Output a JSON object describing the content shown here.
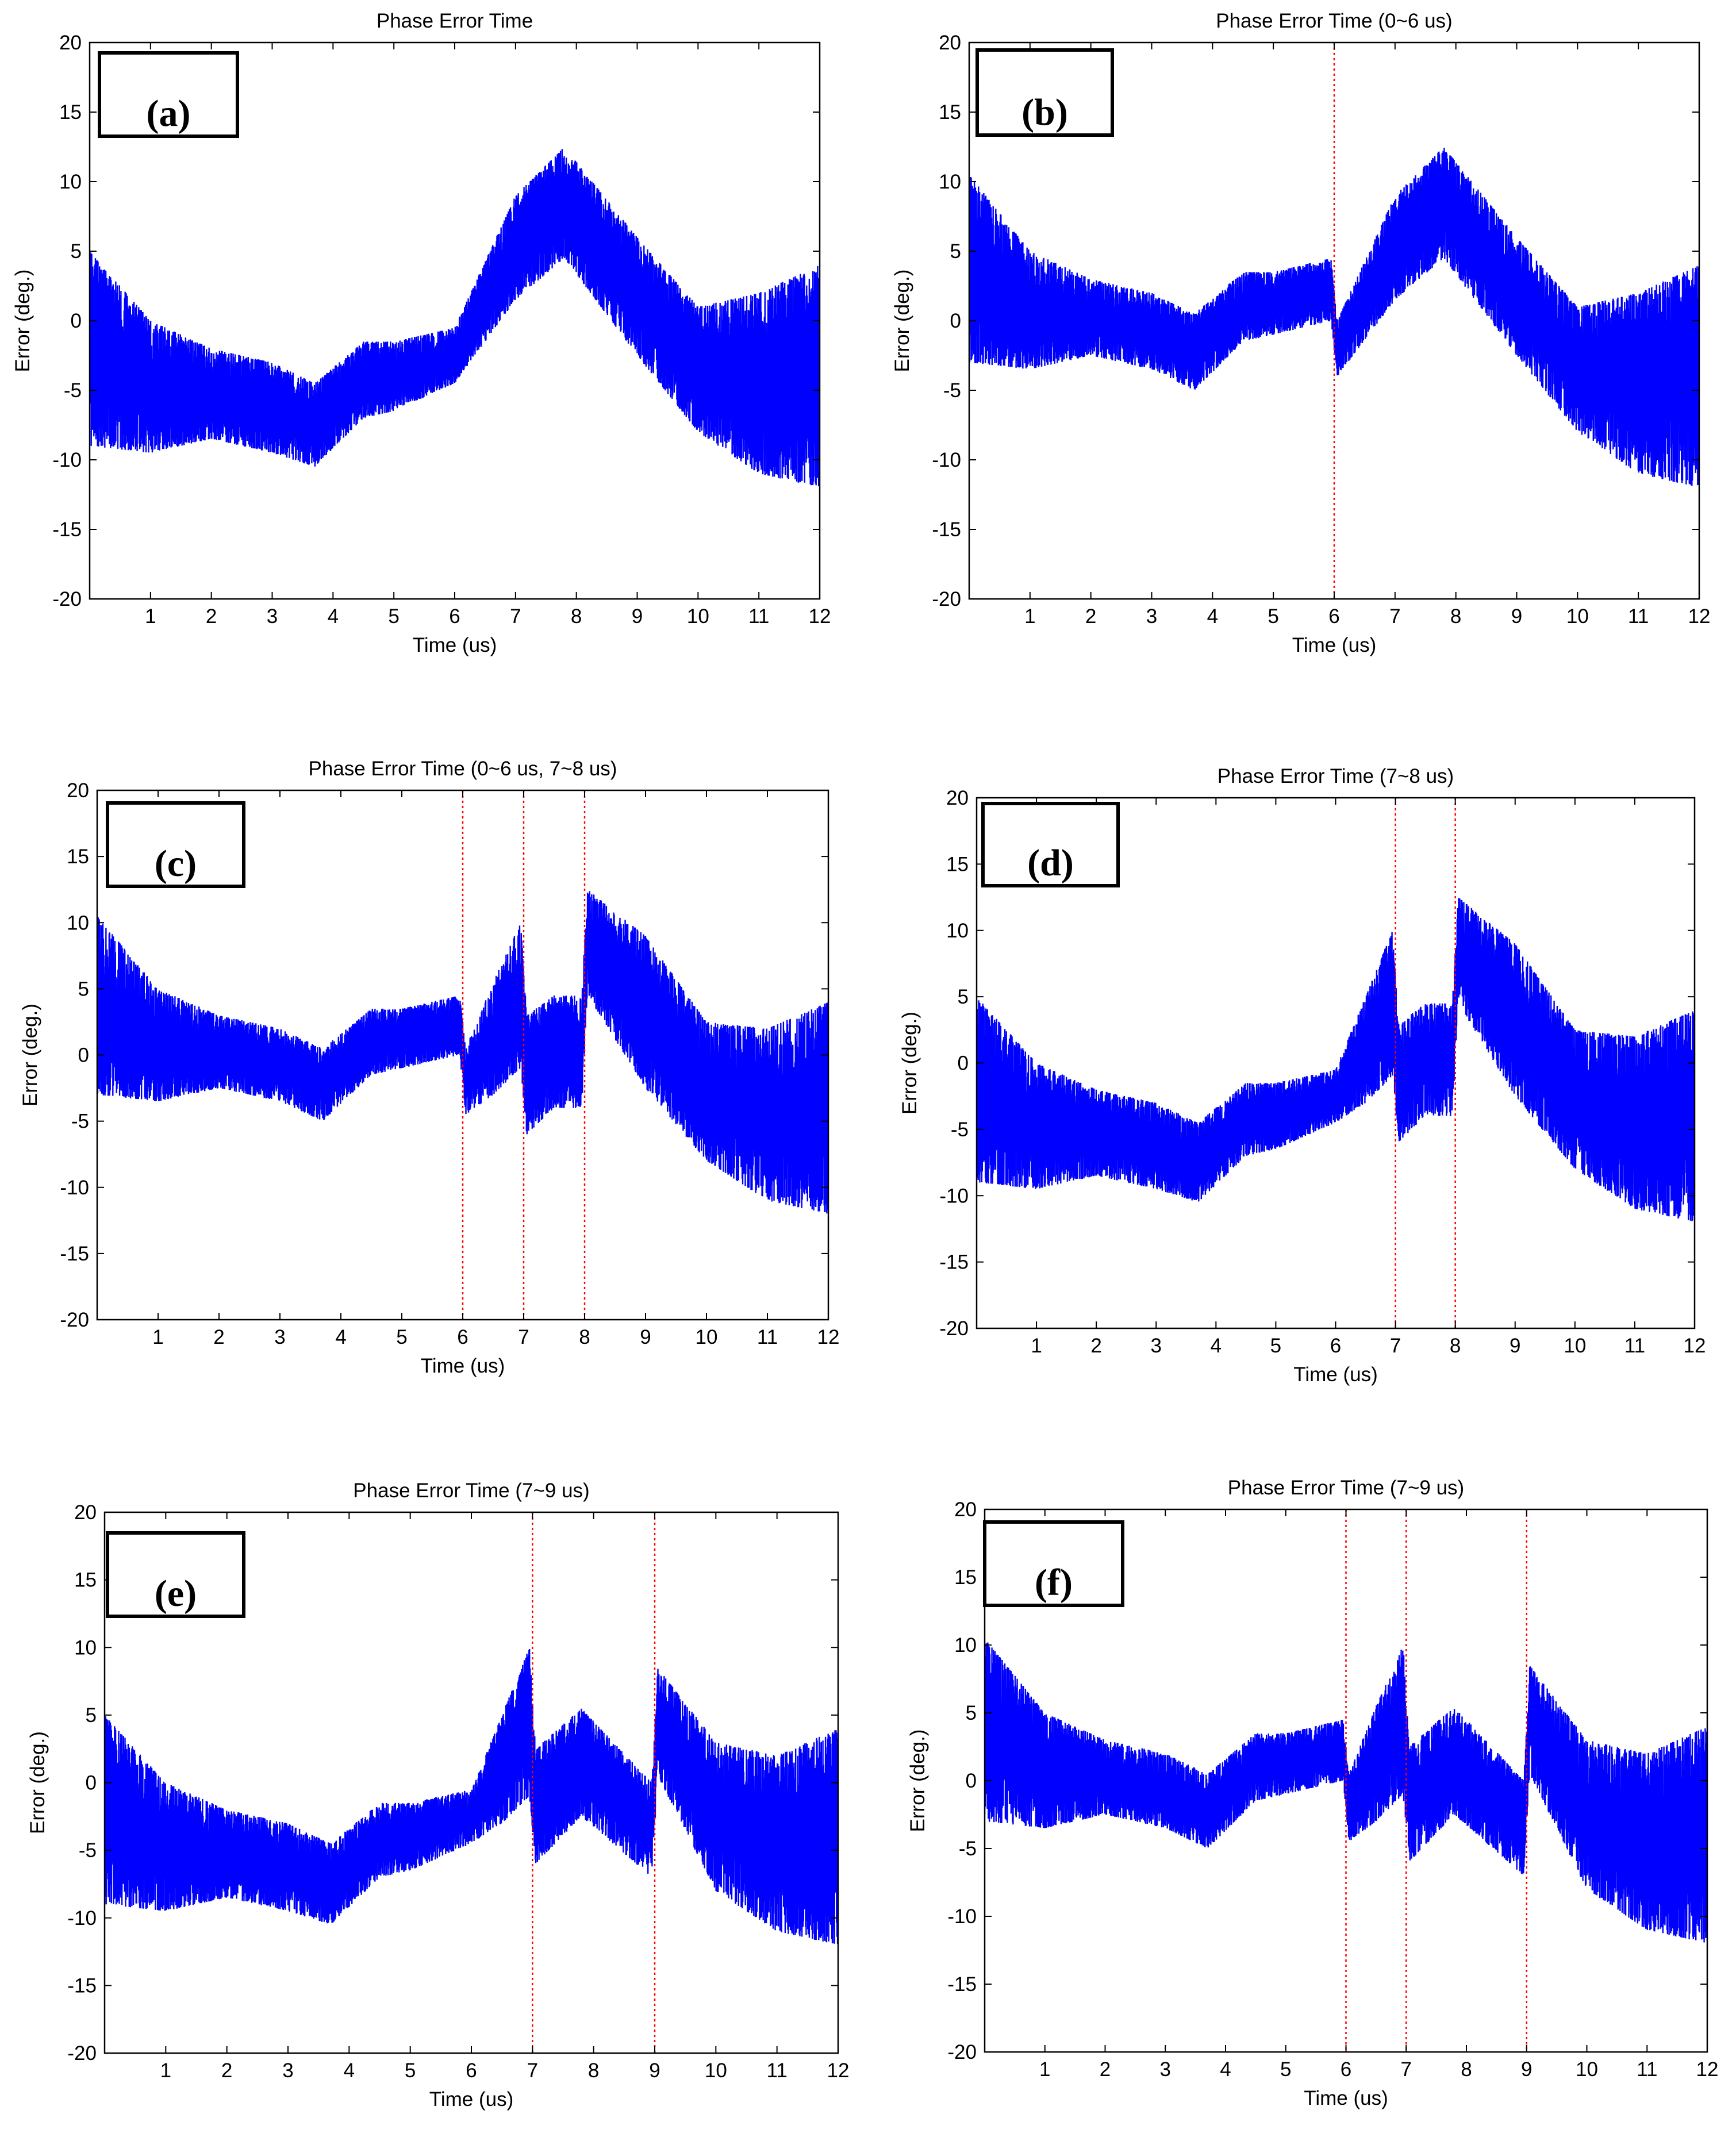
{
  "figure": {
    "background": "#ffffff",
    "signal_color": "#0000ff",
    "marker_color": "#ff0000",
    "axis_color": "#000000"
  },
  "chart_data": [
    {
      "panel": "(a)",
      "type": "line",
      "title": "Phase Error Time",
      "xlabel": "Time (us)",
      "ylabel": "Error (deg.)",
      "xlim": [
        0,
        12
      ],
      "ylim": [
        -20,
        20
      ],
      "xticks": [
        1,
        2,
        3,
        4,
        5,
        6,
        7,
        8,
        9,
        10,
        11,
        12
      ],
      "yticks": [
        -20,
        -15,
        -10,
        -5,
        0,
        5,
        10,
        15,
        20
      ],
      "grid": false,
      "markers": [],
      "envelope": {
        "x": [
          0,
          1,
          2,
          3,
          3.7,
          4.5,
          5,
          6,
          7,
          7.8,
          9,
          10,
          11,
          12
        ],
        "upper": [
          5,
          0,
          -2,
          -3,
          -4.5,
          -1.5,
          -1.5,
          -0.5,
          9,
          12.5,
          6,
          1,
          2,
          4
        ],
        "lower": [
          -9,
          -9.5,
          -8.5,
          -9.5,
          -10.5,
          -7,
          -6.5,
          -4.5,
          1.5,
          4.5,
          -2.5,
          -8,
          -11,
          -12
        ]
      }
    },
    {
      "panel": "(b)",
      "type": "line",
      "title": "Phase Error Time (0~6 us)",
      "xlabel": "Time (us)",
      "ylabel": "Error (deg.)",
      "xlim": [
        0,
        12
      ],
      "ylim": [
        -20,
        20
      ],
      "xticks": [
        1,
        2,
        3,
        4,
        5,
        6,
        7,
        8,
        9,
        10,
        11,
        12
      ],
      "yticks": [
        -20,
        -15,
        -10,
        -5,
        0,
        5,
        10,
        15,
        20
      ],
      "grid": false,
      "markers": [
        6
      ],
      "envelope": {
        "x": [
          0,
          1,
          2,
          3,
          3.7,
          4.5,
          5,
          5.95,
          6.05,
          7,
          7.8,
          9,
          10,
          11,
          12
        ],
        "upper": [
          10.5,
          5,
          3,
          2,
          0.5,
          3.5,
          3.5,
          4.5,
          0,
          9,
          12.5,
          6,
          1,
          2,
          4
        ],
        "lower": [
          -3,
          -3.5,
          -2.5,
          -3.5,
          -5,
          -1.5,
          -1,
          0,
          -4,
          1.5,
          4.5,
          -2.5,
          -8,
          -11,
          -12
        ]
      }
    },
    {
      "panel": "(c)",
      "type": "line",
      "title": "Phase Error Time (0~6 us, 7~8 us)",
      "xlabel": "Time (us)",
      "ylabel": "Error (deg.)",
      "xlim": [
        0,
        12
      ],
      "ylim": [
        -20,
        20
      ],
      "xticks": [
        1,
        2,
        3,
        4,
        5,
        6,
        7,
        8,
        9,
        10,
        11,
        12
      ],
      "yticks": [
        -20,
        -15,
        -10,
        -5,
        0,
        5,
        10,
        15,
        20
      ],
      "grid": false,
      "markers": [
        6,
        7,
        8
      ],
      "envelope": {
        "x": [
          0,
          1,
          2,
          3,
          3.7,
          4.5,
          5,
          5.95,
          6.05,
          6.5,
          6.95,
          7.05,
          7.5,
          7.95,
          8.05,
          9,
          10,
          11,
          12
        ],
        "upper": [
          10.5,
          5,
          3,
          2,
          0.5,
          3.5,
          3.5,
          4.5,
          0.5,
          5.5,
          10,
          3,
          4.5,
          4.5,
          12.5,
          9,
          2.5,
          2,
          4
        ],
        "lower": [
          -3,
          -3.5,
          -2.5,
          -3.5,
          -5,
          -1.5,
          -1,
          0,
          -4.5,
          -3,
          -1,
          -6,
          -4,
          -4,
          4.5,
          -2.5,
          -8,
          -11,
          -12
        ]
      }
    },
    {
      "panel": "(d)",
      "type": "line",
      "title": "Phase Error Time (7~8 us)",
      "xlabel": "Time (us)",
      "ylabel": "Error (deg.)",
      "xlim": [
        0,
        12
      ],
      "ylim": [
        -20,
        20
      ],
      "xticks": [
        1,
        2,
        3,
        4,
        5,
        6,
        7,
        8,
        9,
        10,
        11,
        12
      ],
      "yticks": [
        -20,
        -15,
        -10,
        -5,
        0,
        5,
        10,
        15,
        20
      ],
      "grid": false,
      "markers": [
        7,
        8
      ],
      "envelope": {
        "x": [
          0,
          1,
          2,
          3,
          3.7,
          4.5,
          5,
          6,
          6.5,
          6.95,
          7.05,
          7.5,
          7.95,
          8.05,
          9,
          10,
          11,
          12
        ],
        "upper": [
          5,
          0,
          -2,
          -3,
          -4.5,
          -1.5,
          -1.5,
          -0.5,
          5,
          10,
          3,
          4.5,
          4.5,
          12.5,
          9,
          2.5,
          2,
          4
        ],
        "lower": [
          -9,
          -9.5,
          -8.5,
          -9.5,
          -10.5,
          -7,
          -6.5,
          -4.5,
          -3,
          -1,
          -6,
          -4,
          -4,
          4.5,
          -2.5,
          -8,
          -11,
          -12
        ]
      }
    },
    {
      "panel": "(e)",
      "type": "line",
      "title": "Phase Error Time (7~9 us)",
      "xlabel": "Time (us)",
      "ylabel": "Error (deg.)",
      "xlim": [
        0,
        12
      ],
      "ylim": [
        -20,
        20
      ],
      "xticks": [
        1,
        2,
        3,
        4,
        5,
        6,
        7,
        8,
        9,
        10,
        11,
        12
      ],
      "yticks": [
        -20,
        -15,
        -10,
        -5,
        0,
        5,
        10,
        15,
        20
      ],
      "grid": false,
      "markers": [
        7,
        9
      ],
      "envelope": {
        "x": [
          0,
          1,
          2,
          3,
          3.7,
          4.5,
          5,
          6,
          6.5,
          6.95,
          7.05,
          7.8,
          8.95,
          9.05,
          10,
          11,
          12
        ],
        "upper": [
          5,
          0,
          -2,
          -3,
          -4.5,
          -1.5,
          -1.5,
          -0.5,
          5,
          10,
          2.5,
          5.5,
          0,
          8.5,
          3,
          2,
          4
        ],
        "lower": [
          -9,
          -9.5,
          -8.5,
          -9.5,
          -10.5,
          -7,
          -6.5,
          -4.5,
          -3,
          -1,
          -6,
          -2.5,
          -7,
          0.5,
          -8,
          -11,
          -12
        ]
      }
    },
    {
      "panel": "(f)",
      "type": "line",
      "title": "Phase Error Time (7~9 us)",
      "xlabel": "Time (us)",
      "ylabel": "Error (deg.)",
      "xlim": [
        0,
        12
      ],
      "ylim": [
        -20,
        20
      ],
      "xticks": [
        1,
        2,
        3,
        4,
        5,
        6,
        7,
        8,
        9,
        10,
        11,
        12
      ],
      "yticks": [
        -20,
        -15,
        -10,
        -5,
        0,
        5,
        10,
        15,
        20
      ],
      "grid": false,
      "markers": [
        6,
        7,
        9
      ],
      "envelope": {
        "x": [
          0,
          1,
          2,
          3,
          3.7,
          4.5,
          5,
          5.95,
          6.05,
          6.5,
          6.95,
          7.05,
          7.8,
          8.95,
          9.05,
          10,
          11,
          12
        ],
        "upper": [
          10.5,
          5,
          3,
          2,
          0.5,
          3.5,
          3.5,
          4.5,
          0.5,
          5.5,
          10,
          2.5,
          5.5,
          0,
          8.5,
          3,
          2,
          4
        ],
        "lower": [
          -3,
          -3.5,
          -2.5,
          -3.5,
          -5,
          -1.5,
          -1,
          0,
          -4.5,
          -3,
          -1,
          -6,
          -2.5,
          -7,
          0.5,
          -8,
          -11,
          -12
        ]
      }
    }
  ]
}
